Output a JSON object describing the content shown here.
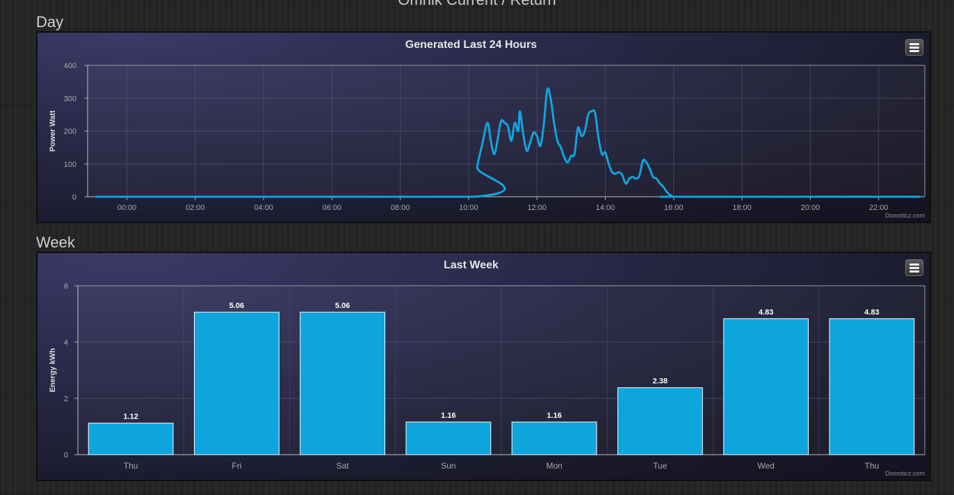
{
  "page": {
    "title": "Omnik Current / Return"
  },
  "sections": {
    "day_label": "Day",
    "week_label": "Week"
  },
  "menu_icon": "hamburger-menu-icon",
  "colors": {
    "series": "#11a4dc",
    "bar": "#0ea5dc",
    "bar_border": "#ffffff",
    "title_text": "#e6e6e6",
    "axis_text": "#aaaaaa",
    "grid": "#5a5a70"
  },
  "chart_data": [
    {
      "type": "line",
      "title": "Generated Last 24 Hours",
      "ylabel": "Power Watt",
      "xlabel": "",
      "credit": "Domoticz.com",
      "ylim": [
        0,
        400
      ],
      "yticks": [
        0,
        100,
        200,
        300,
        400
      ],
      "xlim": [
        -1.15,
        23.35
      ],
      "xticks": [
        "00:00",
        "02:00",
        "04:00",
        "06:00",
        "08:00",
        "10:00",
        "12:00",
        "14:00",
        "16:00",
        "18:00",
        "20:00",
        "22:00"
      ],
      "grid": true,
      "series": [
        {
          "name": "",
          "x": [
            -0.9,
            10.15,
            10.25,
            10.4,
            10.55,
            10.65,
            10.75,
            10.85,
            10.95,
            11.05,
            11.15,
            11.25,
            11.35,
            11.45,
            11.5,
            11.6,
            11.7,
            11.8,
            11.9,
            12.0,
            12.1,
            12.2,
            12.3,
            12.4,
            12.5,
            12.6,
            12.7,
            12.8,
            12.9,
            13.0,
            13.1,
            13.2,
            13.3,
            13.4,
            13.5,
            13.6,
            13.7,
            13.8,
            13.9,
            14.0,
            14.1,
            14.2,
            14.3,
            14.4,
            14.5,
            14.6,
            14.7,
            14.8,
            14.9,
            15.0,
            15.1,
            15.2,
            15.3,
            15.4,
            15.5,
            15.6,
            15.7,
            15.8,
            15.9,
            16.0,
            16.1,
            16.2,
            23.2
          ],
          "y": [
            0,
            0,
            90,
            160,
            225,
            170,
            130,
            175,
            230,
            225,
            215,
            170,
            225,
            200,
            260,
            190,
            140,
            165,
            195,
            185,
            155,
            220,
            325,
            300,
            225,
            170,
            150,
            120,
            105,
            125,
            130,
            210,
            185,
            200,
            250,
            260,
            255,
            180,
            130,
            135,
            100,
            75,
            70,
            75,
            65,
            40,
            55,
            60,
            55,
            65,
            110,
            105,
            85,
            60,
            55,
            40,
            30,
            15,
            5,
            0,
            0,
            0,
            0
          ]
        }
      ]
    },
    {
      "type": "bar",
      "title": "Last Week",
      "ylabel": "Energy kWh",
      "xlabel": "",
      "credit": "Domoticz.com",
      "ylim": [
        0,
        6
      ],
      "yticks": [
        0,
        2,
        4,
        6
      ],
      "grid": true,
      "categories": [
        "Thu",
        "Fri",
        "Sat",
        "Sun",
        "Mon",
        "Tue",
        "Wed",
        "Thu"
      ],
      "values": [
        1.12,
        5.06,
        5.06,
        1.16,
        1.16,
        2.38,
        4.83,
        4.83
      ],
      "labels": [
        "1.12",
        "5.06",
        "5.06",
        "1.16",
        "1.16",
        "2.38",
        "4.83",
        "4.83"
      ]
    }
  ]
}
